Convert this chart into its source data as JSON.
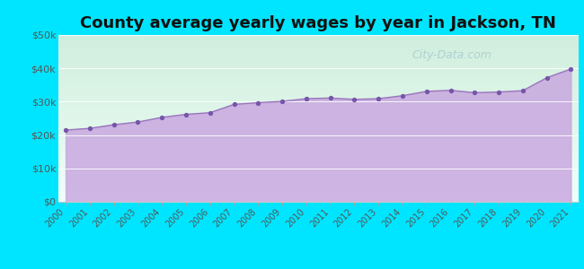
{
  "title": "County average yearly wages by year in Jackson, TN",
  "years": [
    2000,
    2001,
    2002,
    2003,
    2004,
    2005,
    2006,
    2007,
    2008,
    2009,
    2010,
    2011,
    2012,
    2013,
    2014,
    2015,
    2016,
    2017,
    2018,
    2019,
    2020,
    2021
  ],
  "wages": [
    21500,
    22000,
    23100,
    23900,
    25300,
    26200,
    26700,
    29200,
    29700,
    30100,
    30900,
    31100,
    30700,
    30900,
    31800,
    33100,
    33400,
    32700,
    32900,
    33300,
    37200,
    39800
  ],
  "ylim": [
    0,
    50000
  ],
  "yticks": [
    0,
    10000,
    20000,
    30000,
    40000,
    50000
  ],
  "ytick_labels": [
    "$0",
    "$10k",
    "$20k",
    "$30k",
    "$40k",
    "$50k"
  ],
  "fill_color": "#c9a8e0",
  "fill_alpha": 0.85,
  "line_color": "#9977bb",
  "marker_color": "#7755aa",
  "marker_size": 8,
  "bg_gradient_top": "#d0eedd",
  "bg_gradient_bottom": "#f0fff8",
  "outer_bg": "#00e5ff",
  "title_fontsize": 13,
  "watermark": "City-Data.com",
  "watermark_color": "#99bbcc",
  "watermark_alpha": 0.6
}
